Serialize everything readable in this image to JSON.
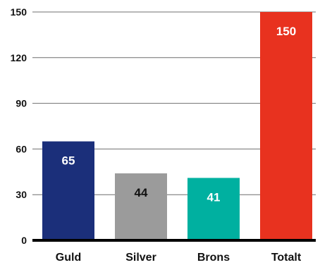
{
  "chart_data": {
    "type": "bar",
    "categories": [
      "Guld",
      "Silver",
      "Brons",
      "Totalt"
    ],
    "values": [
      65,
      44,
      41,
      150
    ],
    "data_labels": [
      "65",
      "44",
      "41",
      "150"
    ],
    "colors": [
      "#1b2f7a",
      "#9b9b9b",
      "#00b0a0",
      "#e8321f"
    ],
    "label_colors": [
      "#ffffff",
      "#111111",
      "#ffffff",
      "#ffffff"
    ],
    "title": "",
    "xlabel": "",
    "ylabel": "",
    "ylim": [
      0,
      150
    ],
    "yticks": [
      0,
      30,
      60,
      90,
      120,
      150
    ],
    "ytick_labels": [
      "0",
      "30",
      "60",
      "90",
      "120",
      "150"
    ],
    "grid": true,
    "legend": "none"
  }
}
